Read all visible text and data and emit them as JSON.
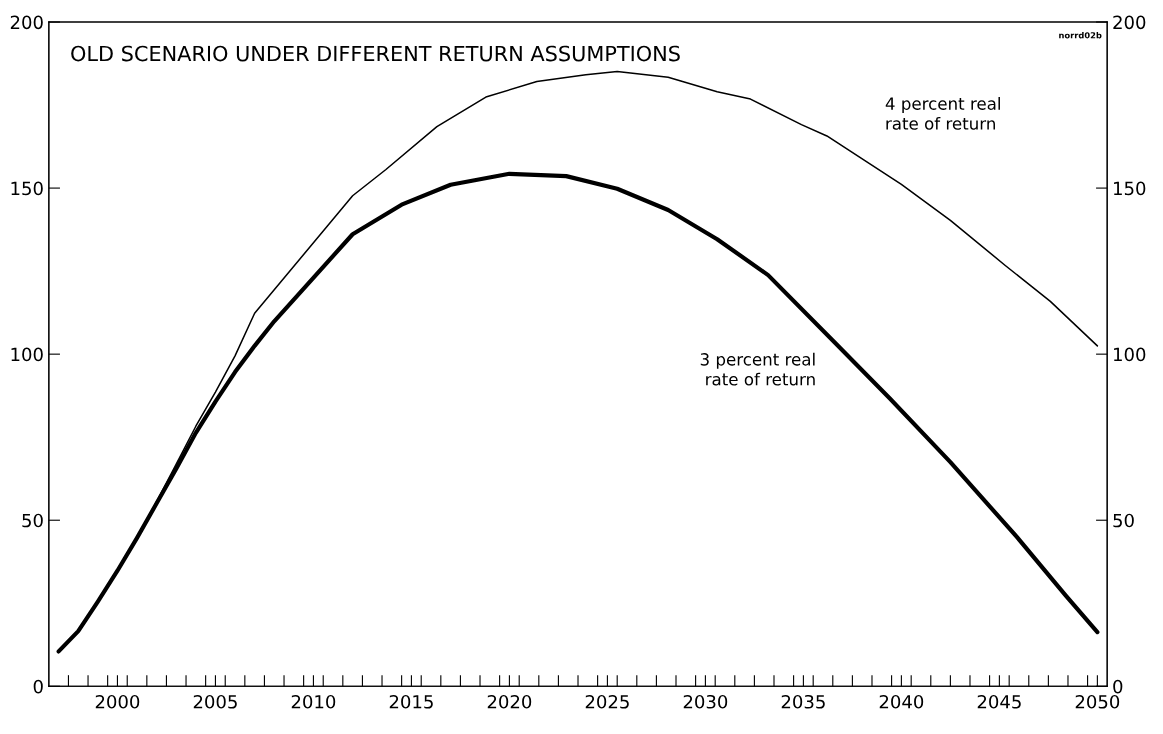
{
  "chart_data": {
    "type": "line",
    "title": "OLD SCENARIO UNDER DIFFERENT RETURN ASSUMPTIONS",
    "annotations": [
      "norrd02b"
    ],
    "series": [
      {
        "name": "4 percent real\nrate of return",
        "color": "#000000",
        "x": [
          1997,
          1998,
          1999,
          2000,
          2001,
          2002,
          2003,
          2004,
          2005,
          2006,
          2007,
          2012,
          2013.7,
          2016.3,
          2018.8,
          2021.4,
          2023.9,
          2025.5,
          2028.1,
          2030.6,
          2032.3,
          2034.9,
          2036.2,
          2040,
          2042.5,
          2045.3,
          2047.6,
          2050
        ],
        "values": [
          10.5,
          16.6,
          25.5,
          34.8,
          44.7,
          55.6,
          66.9,
          78.3,
          88.6,
          99.5,
          112.3,
          147.7,
          155.6,
          168.5,
          177.4,
          182.1,
          184.1,
          185.1,
          183.4,
          179,
          176.8,
          169.1,
          165.7,
          151.1,
          140.3,
          126.7,
          115.9,
          102.5
        ]
      },
      {
        "name": "3 percent real\nrate of return",
        "color": "#000000",
        "x": [
          1997,
          1998,
          1999,
          2000,
          2001,
          2002,
          2003,
          2004,
          2005,
          2006,
          2007,
          2008,
          2012,
          2014.5,
          2017,
          2020,
          2022.9,
          2025.5,
          2028.1,
          2030.6,
          2033.2,
          2036.6,
          2039.4,
          2042.5,
          2045.9,
          2048.4,
          2050
        ],
        "values": [
          10.5,
          16.6,
          25.5,
          34.8,
          44.7,
          55.1,
          65.5,
          76.3,
          85.7,
          94.6,
          102.5,
          109.9,
          136.1,
          145,
          151,
          154.3,
          153.6,
          149.8,
          143.4,
          134.6,
          123.8,
          103.5,
          86.7,
          67.5,
          44.9,
          27.2,
          16.3
        ]
      }
    ],
    "xlim": [
      1996.5,
      2050.5
    ],
    "xticks": [
      {
        "value": 1997.5,
        "label": null
      },
      {
        "value": 1998.5,
        "label": null
      },
      {
        "value": 1999.5,
        "label": null
      },
      2000,
      {
        "value": 2000.5,
        "label": null
      },
      {
        "value": 2001.5,
        "label": null
      },
      {
        "value": 2002.5,
        "label": null
      },
      {
        "value": 2003.5,
        "label": null
      },
      {
        "value": 2004.5,
        "label": null
      },
      2005,
      {
        "value": 2005.5,
        "label": null
      },
      {
        "value": 2006.5,
        "label": null
      },
      {
        "value": 2007.5,
        "label": null
      },
      {
        "value": 2008.5,
        "label": null
      },
      {
        "value": 2009.5,
        "label": null
      },
      2010,
      {
        "value": 2010.5,
        "label": null
      },
      {
        "value": 2011.5,
        "label": null
      },
      {
        "value": 2012.5,
        "label": null
      },
      {
        "value": 2013.5,
        "label": null
      },
      {
        "value": 2014.5,
        "label": null
      },
      2015,
      {
        "value": 2015.5,
        "label": null
      },
      {
        "value": 2016.5,
        "label": null
      },
      {
        "value": 2017.5,
        "label": null
      },
      {
        "value": 2018.5,
        "label": null
      },
      {
        "value": 2019.5,
        "label": null
      },
      2020,
      {
        "value": 2020.5,
        "label": null
      },
      {
        "value": 2021.5,
        "label": null
      },
      {
        "value": 2022.5,
        "label": null
      },
      {
        "value": 2023.5,
        "label": null
      },
      {
        "value": 2024.5,
        "label": null
      },
      2025,
      {
        "value": 2025.5,
        "label": null
      },
      {
        "value": 2026.5,
        "label": null
      },
      {
        "value": 2027.5,
        "label": null
      },
      {
        "value": 2028.5,
        "label": null
      },
      {
        "value": 2029.5,
        "label": null
      },
      2030,
      {
        "value": 2030.5,
        "label": null
      },
      {
        "value": 2031.5,
        "label": null
      },
      {
        "value": 2032.5,
        "label": null
      },
      {
        "value": 2033.5,
        "label": null
      },
      {
        "value": 2034.5,
        "label": null
      },
      2035,
      {
        "value": 2035.5,
        "label": null
      },
      {
        "value": 2036.5,
        "label": null
      },
      {
        "value": 2037.5,
        "label": null
      },
      {
        "value": 2038.5,
        "label": null
      },
      {
        "value": 2039.5,
        "label": null
      },
      2040,
      {
        "value": 2040.5,
        "label": null
      },
      {
        "value": 2041.5,
        "label": null
      },
      {
        "value": 2042.5,
        "label": null
      },
      {
        "value": 2043.5,
        "label": null
      },
      {
        "value": 2044.5,
        "label": null
      },
      2045,
      {
        "value": 2045.5,
        "label": null
      },
      {
        "value": 2046.5,
        "label": null
      },
      {
        "value": 2047.5,
        "label": null
      },
      {
        "value": 2048.5,
        "label": null
      },
      {
        "value": 2049.5,
        "label": null
      },
      2050
    ],
    "ylim": [
      0,
      200
    ],
    "yticks": [
      0,
      50,
      100,
      150,
      200
    ],
    "y2lim": [
      0,
      200
    ],
    "y2ticks": [
      0,
      50,
      100,
      150,
      200
    ],
    "grid": false,
    "legend": false,
    "line_style": "solid",
    "marker": "none"
  }
}
